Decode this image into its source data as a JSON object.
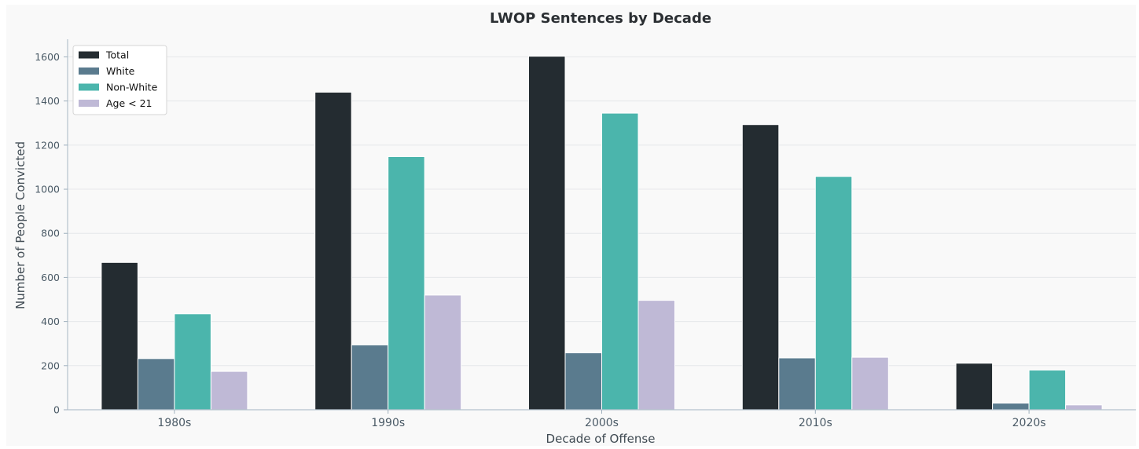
{
  "chart_data": {
    "type": "bar",
    "title": "LWOP Sentences by Decade",
    "xlabel": "Decade of Offense",
    "ylabel": "Number of People Convicted",
    "categories": [
      "1980s",
      "1990s",
      "2000s",
      "2010s",
      "2020s"
    ],
    "series": [
      {
        "name": "Total",
        "color": "#242c31",
        "values": [
          668,
          1440,
          1603,
          1293,
          211
        ]
      },
      {
        "name": "White",
        "color": "#5a7b8e",
        "values": [
          232,
          294,
          258,
          235,
          30
        ]
      },
      {
        "name": "Non-White",
        "color": "#4bb5ac",
        "values": [
          435,
          1148,
          1345,
          1058,
          180
        ]
      },
      {
        "name": "Age < 21",
        "color": "#bfb9d6",
        "values": [
          174,
          520,
          496,
          238,
          22
        ]
      }
    ],
    "ylim": [
      0,
      1680
    ],
    "yticks": [
      0,
      200,
      400,
      600,
      800,
      1000,
      1200,
      1400,
      1600
    ],
    "grid": true,
    "legend_position": "top-left"
  }
}
